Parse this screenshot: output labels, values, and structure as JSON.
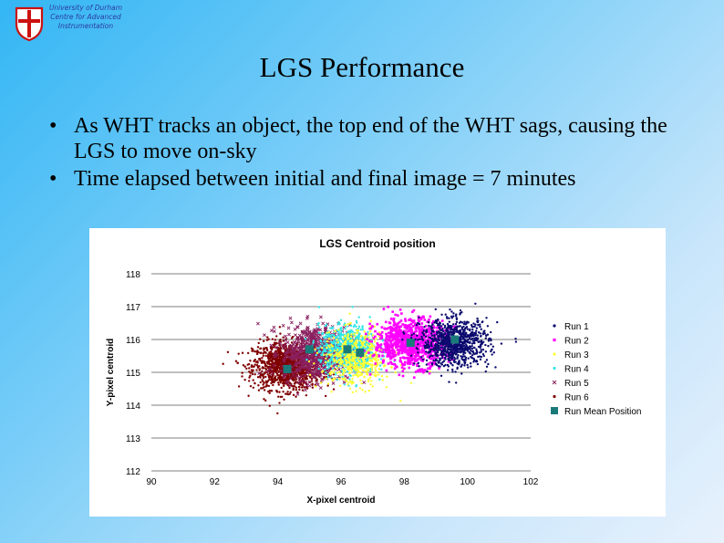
{
  "header": {
    "institution_lines": [
      "University of Durham",
      "Centre for Advanced",
      "Instrumentation"
    ]
  },
  "slide": {
    "title": "LGS Performance",
    "bullets": [
      "As WHT tracks an object, the top end of the WHT sags, causing the LGS to move on-sky",
      "Time elapsed between initial and final image = 7 minutes"
    ]
  },
  "chart_data": {
    "type": "scatter",
    "title": "LGS Centroid position",
    "xlabel": "X-pixel centroid",
    "ylabel": "Y-pixel centroid",
    "xlim": [
      90,
      102
    ],
    "ylim": [
      112,
      118
    ],
    "xticks": [
      90,
      92,
      94,
      96,
      98,
      100,
      102
    ],
    "yticks": [
      112,
      113,
      114,
      115,
      116,
      117,
      118
    ],
    "grid": "horizontal",
    "legend_position": "right",
    "series": [
      {
        "name": "Run 1",
        "color": "#0a0a6e",
        "marker": "dot",
        "center": [
          99.6,
          115.9
        ],
        "spread": [
          0.9,
          0.6
        ],
        "n": 900
      },
      {
        "name": "Run 2",
        "color": "#ff00ff",
        "marker": "square",
        "center": [
          98.2,
          115.9
        ],
        "spread": [
          0.95,
          0.6
        ],
        "n": 900
      },
      {
        "name": "Run 3",
        "color": "#ffff33",
        "marker": "dot",
        "center": [
          96.5,
          115.4
        ],
        "spread": [
          0.9,
          0.7
        ],
        "n": 500
      },
      {
        "name": "Run 4",
        "color": "#33e6e6",
        "marker": "dot",
        "center": [
          96.2,
          115.7
        ],
        "spread": [
          0.75,
          0.6
        ],
        "n": 800
      },
      {
        "name": "Run 5",
        "color": "#8a2060",
        "marker": "cross",
        "center": [
          95.2,
          115.6
        ],
        "spread": [
          0.9,
          0.7
        ],
        "n": 700
      },
      {
        "name": "Run 6",
        "color": "#800000",
        "marker": "dot",
        "center": [
          94.3,
          115.2
        ],
        "spread": [
          0.9,
          0.6
        ],
        "n": 1300
      }
    ],
    "mean_positions": {
      "name": "Run Mean Position",
      "color": "#1a7a7a",
      "points": [
        [
          94.3,
          115.1
        ],
        [
          95.0,
          115.7
        ],
        [
          96.2,
          115.7
        ],
        [
          96.6,
          115.6
        ],
        [
          98.2,
          115.9
        ],
        [
          99.6,
          116.0
        ]
      ]
    }
  }
}
